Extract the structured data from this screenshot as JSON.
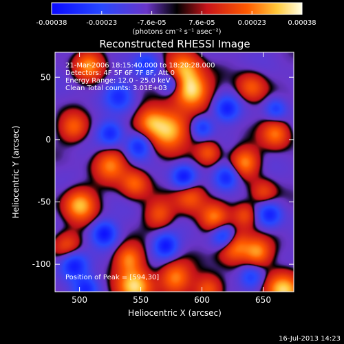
{
  "chart_data": {
    "type": "heatmap",
    "title": "Reconstructed RHESSI Image",
    "xlabel": "Heliocentric X (arcsec)",
    "ylabel": "Heliocentric Y (arcsec)",
    "xlim": [
      480,
      675
    ],
    "ylim": [
      -122,
      70
    ],
    "xticks": [
      500,
      550,
      600,
      650
    ],
    "yticks": [
      50,
      0,
      -50,
      -100
    ],
    "colorbar": {
      "ticks": [
        "-0.00038",
        "-0.00023",
        "-7.6e-05",
        "7.6e-05",
        "0.00023",
        "0.00038"
      ],
      "min": -0.00038,
      "max": 0.00038,
      "unit_label": "(photons cm⁻² s⁻¹ asec⁻²)"
    },
    "annotations": [
      "21-Mar-2006 18:15:40.000 to 18:20:28.000",
      "Detectors: 4F 5F 6F 7F 8F, Att 0",
      "Energy Range: 12.0 - 25.0 keV",
      "Clean     Total counts: 3.01E+03"
    ],
    "peak_label": "Position of Peak = [594,30]",
    "peak": {
      "x": 594,
      "y": 30,
      "value": 0.00038
    },
    "blobs": [
      {
        "x": 591,
        "y": 40,
        "s": 10,
        "a": 1.0
      },
      {
        "x": 572,
        "y": 8,
        "s": 11,
        "a": 0.95
      },
      {
        "x": 585,
        "y": 58,
        "s": 9,
        "a": 0.7
      },
      {
        "x": 557,
        "y": 15,
        "s": 8,
        "a": 0.55
      },
      {
        "x": 635,
        "y": -18,
        "s": 8,
        "a": 0.7
      },
      {
        "x": 660,
        "y": 5,
        "s": 8,
        "a": 0.65
      },
      {
        "x": 640,
        "y": 42,
        "s": 8,
        "a": 0.55
      },
      {
        "x": 605,
        "y": -10,
        "s": 7,
        "a": 0.55
      },
      {
        "x": 590,
        "y": -45,
        "s": 9,
        "a": 0.6
      },
      {
        "x": 610,
        "y": -62,
        "s": 8,
        "a": 0.6
      },
      {
        "x": 625,
        "y": -85,
        "s": 9,
        "a": 0.85
      },
      {
        "x": 645,
        "y": -90,
        "s": 8,
        "a": 0.7
      },
      {
        "x": 666,
        "y": -120,
        "s": 10,
        "a": 0.95
      },
      {
        "x": 500,
        "y": -52,
        "s": 9,
        "a": 0.85
      },
      {
        "x": 507,
        "y": 60,
        "s": 8,
        "a": 0.7
      },
      {
        "x": 525,
        "y": -20,
        "s": 9,
        "a": 0.65
      },
      {
        "x": 545,
        "y": -35,
        "s": 8,
        "a": 0.6
      },
      {
        "x": 565,
        "y": -60,
        "s": 8,
        "a": 0.5
      },
      {
        "x": 540,
        "y": -95,
        "s": 8,
        "a": 0.65
      },
      {
        "x": 545,
        "y": -118,
        "s": 10,
        "a": 0.95
      },
      {
        "x": 578,
        "y": -110,
        "s": 9,
        "a": 0.7
      },
      {
        "x": 605,
        "y": -120,
        "s": 8,
        "a": 0.6
      },
      {
        "x": 495,
        "y": 10,
        "s": 8,
        "a": 0.55
      },
      {
        "x": 635,
        "y": -60,
        "s": 7,
        "a": 0.5
      },
      {
        "x": 650,
        "y": -42,
        "s": 7,
        "a": 0.45
      },
      {
        "x": 490,
        "y": -85,
        "s": 8,
        "a": 0.5
      },
      {
        "x": 600,
        "y": 10,
        "s": 6,
        "a": -0.6
      },
      {
        "x": 620,
        "y": 25,
        "s": 7,
        "a": -0.7
      },
      {
        "x": 532,
        "y": 35,
        "s": 8,
        "a": -0.6
      },
      {
        "x": 525,
        "y": 5,
        "s": 7,
        "a": -0.7
      },
      {
        "x": 548,
        "y": -5,
        "s": 7,
        "a": -0.7
      },
      {
        "x": 620,
        "y": -30,
        "s": 7,
        "a": -0.75
      },
      {
        "x": 585,
        "y": -30,
        "s": 7,
        "a": -0.85
      },
      {
        "x": 618,
        "y": -78,
        "s": 7,
        "a": -0.9
      },
      {
        "x": 570,
        "y": -85,
        "s": 7,
        "a": -0.8
      },
      {
        "x": 520,
        "y": -75,
        "s": 7,
        "a": -0.8
      },
      {
        "x": 495,
        "y": -100,
        "s": 8,
        "a": -0.85
      },
      {
        "x": 575,
        "y": 45,
        "s": 6,
        "a": -0.5
      },
      {
        "x": 555,
        "y": 60,
        "s": 7,
        "a": -0.55
      },
      {
        "x": 655,
        "y": -60,
        "s": 7,
        "a": -0.7
      },
      {
        "x": 660,
        "y": 25,
        "s": 6,
        "a": -0.55
      },
      {
        "x": 640,
        "y": -110,
        "s": 7,
        "a": -0.6
      },
      {
        "x": 505,
        "y": -120,
        "s": 7,
        "a": -0.6
      }
    ]
  },
  "footer": {
    "timestamp": "16-Jul-2013 14:23"
  }
}
